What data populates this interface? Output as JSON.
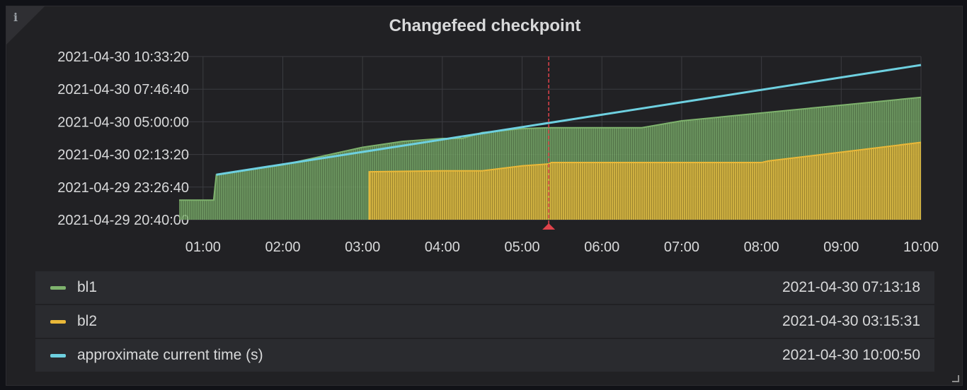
{
  "panel": {
    "title": "Changefeed checkpoint",
    "info_icon": "info-icon"
  },
  "chart_data": {
    "type": "area",
    "title": "Changefeed checkpoint",
    "x_ticks": [
      "01:00",
      "02:00",
      "03:00",
      "04:00",
      "05:00",
      "06:00",
      "07:00",
      "08:00",
      "09:00",
      "10:00"
    ],
    "y_ticks": [
      "2021-04-29 20:40:00",
      "2021-04-29 23:26:40",
      "2021-04-30 02:13:20",
      "2021-04-30 05:00:00",
      "2021-04-30 07:46:40",
      "2021-04-30 10:33:20"
    ],
    "x_range": [
      "00:42",
      "10:00"
    ],
    "y_range": [
      "2021-04-29 20:40:00",
      "2021-04-30 10:33:20"
    ],
    "grid": true,
    "legend_position": "bottom",
    "crosshair_x": "05:20",
    "series": [
      {
        "name": "bl1",
        "color": "#7eb26d",
        "points": [
          [
            "00:42",
            "2021-04-29 22:20:00"
          ],
          [
            "01:08",
            "2021-04-29 22:20:00"
          ],
          [
            "01:10",
            "2021-04-30 00:30:00"
          ],
          [
            "02:00",
            "2021-04-30 01:20:00"
          ],
          [
            "03:00",
            "2021-04-30 02:50:00"
          ],
          [
            "03:30",
            "2021-04-30 03:20:00"
          ],
          [
            "04:00",
            "2021-04-30 03:35:00"
          ],
          [
            "04:15",
            "2021-04-30 03:35:00"
          ],
          [
            "04:30",
            "2021-04-30 04:05:00"
          ],
          [
            "05:00",
            "2021-04-30 04:25:00"
          ],
          [
            "05:20",
            "2021-04-30 04:30:00"
          ],
          [
            "06:00",
            "2021-04-30 04:30:00"
          ],
          [
            "06:30",
            "2021-04-30 04:30:00"
          ],
          [
            "07:00",
            "2021-04-30 05:05:00"
          ],
          [
            "08:00",
            "2021-04-30 05:45:00"
          ],
          [
            "09:00",
            "2021-04-30 06:25:00"
          ],
          [
            "10:00",
            "2021-04-30 07:05:00"
          ]
        ]
      },
      {
        "name": "bl2",
        "color": "#eab839",
        "points": [
          [
            "03:05",
            "2021-04-29 20:40:00"
          ],
          [
            "03:05",
            "2021-04-30 00:45:00"
          ],
          [
            "04:00",
            "2021-04-30 00:50:00"
          ],
          [
            "04:30",
            "2021-04-30 00:50:00"
          ],
          [
            "05:00",
            "2021-04-30 01:15:00"
          ],
          [
            "05:20",
            "2021-04-30 01:25:00"
          ],
          [
            "05:22",
            "2021-04-30 01:32:00"
          ],
          [
            "06:00",
            "2021-04-30 01:32:00"
          ],
          [
            "07:00",
            "2021-04-30 01:32:00"
          ],
          [
            "08:00",
            "2021-04-30 01:32:00"
          ],
          [
            "08:05",
            "2021-04-30 01:40:00"
          ],
          [
            "09:00",
            "2021-04-30 02:25:00"
          ],
          [
            "10:00",
            "2021-04-30 03:15:00"
          ]
        ]
      },
      {
        "name": "approximate current time (s)",
        "color": "#6ed0e0",
        "points": [
          [
            "01:10",
            "2021-04-30 00:30:00"
          ],
          [
            "10:00",
            "2021-04-30 09:50:00"
          ]
        ]
      }
    ]
  },
  "legend": [
    {
      "name": "bl1",
      "value": "2021-04-30 07:13:18",
      "color": "#7eb26d"
    },
    {
      "name": "bl2",
      "value": "2021-04-30 03:15:31",
      "color": "#eab839"
    },
    {
      "name": "approximate current time (s)",
      "value": "2021-04-30 10:00:50",
      "color": "#6ed0e0"
    }
  ]
}
